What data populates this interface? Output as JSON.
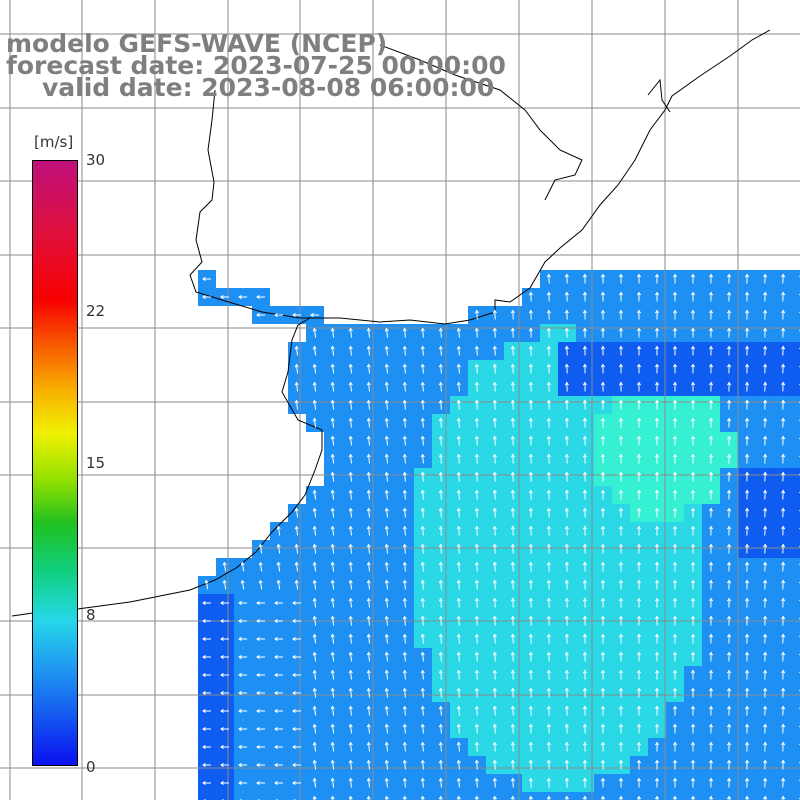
{
  "title": {
    "line1": "modelo GEFS-WAVE (NCEP)",
    "line2": "forecast date: 2023-07-25 00:00:00",
    "line3": "valid date: 2023-08-08 06:00:00"
  },
  "colorbar": {
    "unit": "[m/s]",
    "ticks": [
      "30",
      "22",
      "15",
      "8",
      "0"
    ],
    "colors": [
      "#0a10f0",
      "#1660f0",
      "#22a8f0",
      "#26d8e8",
      "#10d080",
      "#20c020",
      "#90e000",
      "#f0f000",
      "#f8b000",
      "#f86000",
      "#f80000",
      "#e0103c",
      "#c0107c"
    ]
  },
  "map": {
    "land_color": "#ffffff",
    "coast_color": "#000000",
    "grid_color": "#8a8a8a",
    "vector_color": "#ffffff",
    "field_colors": {
      "low": "#0f5cf0",
      "mid": "#1e90f4",
      "high": "#2ad8e6",
      "peak": "#36f0d4"
    }
  }
}
